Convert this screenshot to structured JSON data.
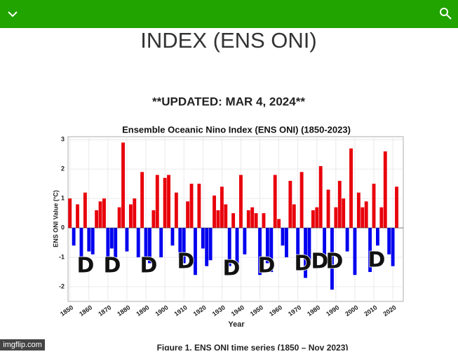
{
  "header": {
    "title": "INDEX (ENS ONI)"
  },
  "updated": "**UPDATED: MAR 4, 2024**",
  "chart_data": {
    "type": "bar",
    "title": "Ensemble Oceanic Nino Index (ENS ONI) (1850-2023)",
    "x_label": "Year",
    "y_label": "ENS ONI Value (°C)",
    "x": [
      1850,
      1852,
      1854,
      1856,
      1858,
      1860,
      1862,
      1864,
      1866,
      1868,
      1870,
      1872,
      1874,
      1876,
      1878,
      1880,
      1882,
      1884,
      1886,
      1888,
      1890,
      1892,
      1894,
      1896,
      1898,
      1900,
      1902,
      1904,
      1906,
      1908,
      1910,
      1912,
      1914,
      1916,
      1918,
      1920,
      1922,
      1924,
      1926,
      1928,
      1930,
      1932,
      1934,
      1936,
      1938,
      1940,
      1942,
      1944,
      1946,
      1948,
      1950,
      1952,
      1954,
      1956,
      1958,
      1960,
      1962,
      1964,
      1966,
      1968,
      1970,
      1972,
      1974,
      1976,
      1978,
      1980,
      1982,
      1984,
      1986,
      1988,
      1990,
      1992,
      1994,
      1996,
      1998,
      2000,
      2002,
      2004,
      2006,
      2008,
      2010,
      2012,
      2014,
      2016,
      2018,
      2020,
      2022
    ],
    "values": [
      1.0,
      -0.6,
      0.8,
      -1.0,
      1.2,
      -0.8,
      -0.9,
      0.6,
      0.9,
      1.0,
      -1.2,
      -0.7,
      -1.0,
      0.7,
      2.9,
      -0.8,
      0.8,
      1.0,
      -1.0,
      1.9,
      -1.1,
      -1.2,
      0.6,
      1.8,
      -1.0,
      1.7,
      1.8,
      -0.6,
      1.2,
      -1.0,
      -1.2,
      0.9,
      1.5,
      -1.6,
      1.5,
      -0.7,
      -1.3,
      -1.1,
      1.1,
      0.6,
      1.4,
      0.8,
      -1.3,
      0.5,
      -1.4,
      1.8,
      -0.9,
      0.6,
      0.7,
      0.5,
      -1.6,
      0.5,
      -1.2,
      -1.5,
      1.8,
      0.3,
      -0.6,
      -1.0,
      1.6,
      0.8,
      -1.2,
      1.9,
      -1.7,
      -1.2,
      0.6,
      0.7,
      2.1,
      -1.2,
      1.3,
      -2.1,
      0.7,
      1.6,
      1.0,
      -0.8,
      2.7,
      -1.6,
      1.2,
      0.7,
      0.9,
      -1.5,
      1.5,
      -0.6,
      0.7,
      2.6,
      -0.9,
      -1.3,
      1.4
    ],
    "positive_color": "#e8000b",
    "negative_color": "#0000ee",
    "xlim": [
      1849,
      2025.5
    ],
    "xticks": [
      1850,
      1860,
      1870,
      1880,
      1890,
      1900,
      1910,
      1920,
      1930,
      1940,
      1950,
      1960,
      1970,
      1980,
      1990,
      2000,
      2010,
      2020
    ],
    "ylim": [
      -2.5,
      3.1
    ],
    "yticks": [
      -2,
      -1,
      0,
      1,
      2,
      3
    ],
    "grid": true
  },
  "caption": "Figure 1. ENS ONI time series (1850 – Nov 2023)",
  "overlay_text": [
    "D",
    "D",
    "D",
    "D",
    "D",
    "D",
    "D",
    "D",
    "D",
    "D"
  ],
  "watermark": "imgflip.com"
}
